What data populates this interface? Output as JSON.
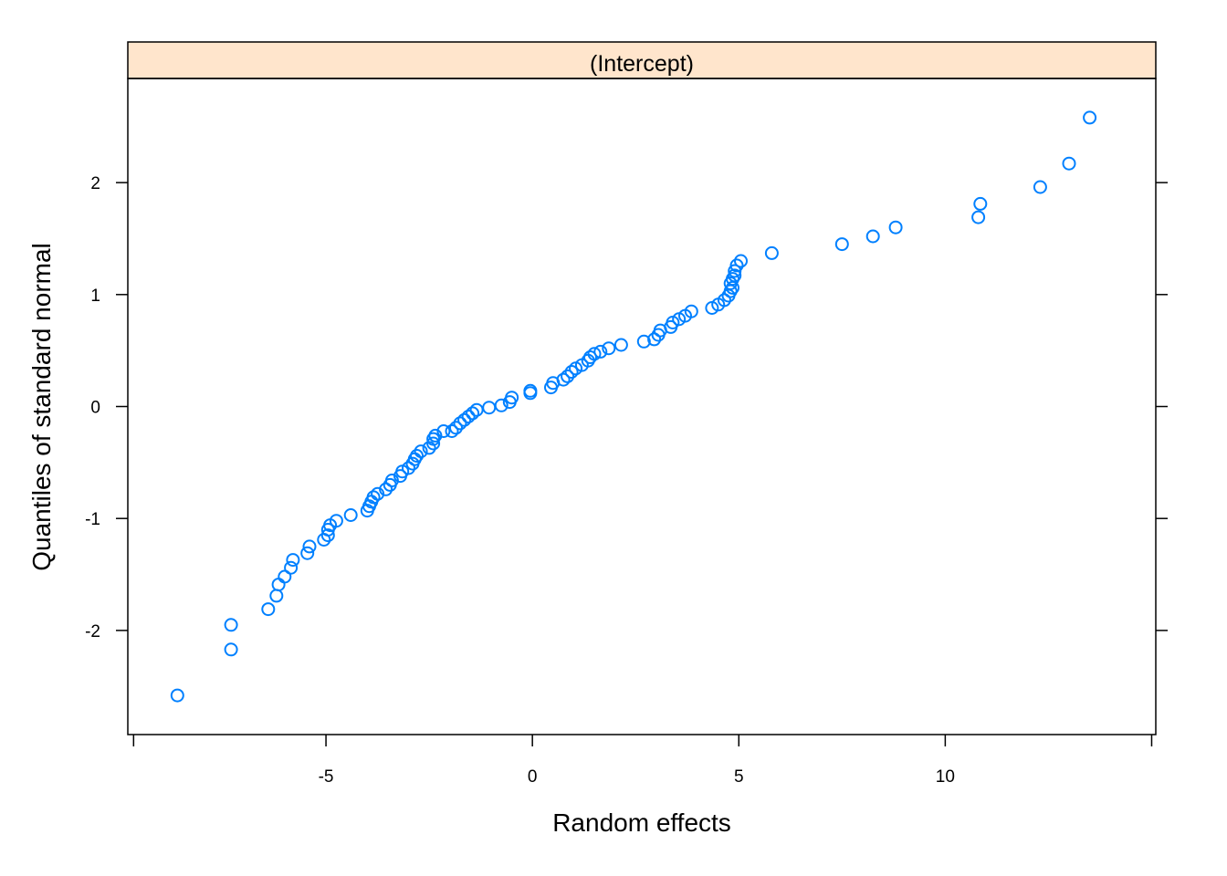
{
  "chart_data": {
    "type": "scatter",
    "panel_label": "(Intercept)",
    "xlabel": "Random effects",
    "ylabel": "Quantiles of standard normal",
    "xlim": [
      -9.8,
      15.1
    ],
    "ylim": [
      -2.93,
      2.93
    ],
    "x_ticks": [
      -5,
      0,
      5,
      10
    ],
    "y_ticks": [
      -2,
      -1,
      0,
      1,
      2
    ],
    "x_tick_labels": [
      "-5",
      "0",
      "5",
      "10"
    ],
    "y_tick_labels": [
      "-2",
      "-1",
      "0",
      "1",
      "2"
    ],
    "grid": false,
    "colors": {
      "points": "#0080ff",
      "strip": "#ffe5cc",
      "frame": "#000000"
    },
    "points": [
      [
        -8.6,
        -2.58
      ],
      [
        -7.3,
        -2.17
      ],
      [
        -7.3,
        -1.95
      ],
      [
        -6.4,
        -1.81
      ],
      [
        -6.2,
        -1.69
      ],
      [
        -6.15,
        -1.59
      ],
      [
        -6.0,
        -1.52
      ],
      [
        -5.85,
        -1.44
      ],
      [
        -5.8,
        -1.37
      ],
      [
        -5.45,
        -1.31
      ],
      [
        -5.4,
        -1.25
      ],
      [
        -5.05,
        -1.19
      ],
      [
        -4.95,
        -1.15
      ],
      [
        -4.95,
        -1.1
      ],
      [
        -4.9,
        -1.06
      ],
      [
        -4.75,
        -1.02
      ],
      [
        -4.4,
        -0.97
      ],
      [
        -4.0,
        -0.93
      ],
      [
        -3.95,
        -0.89
      ],
      [
        -3.9,
        -0.85
      ],
      [
        -3.85,
        -0.81
      ],
      [
        -3.75,
        -0.78
      ],
      [
        -3.55,
        -0.74
      ],
      [
        -3.45,
        -0.7
      ],
      [
        -3.4,
        -0.66
      ],
      [
        -3.2,
        -0.62
      ],
      [
        -3.15,
        -0.58
      ],
      [
        -3.0,
        -0.55
      ],
      [
        -2.9,
        -0.51
      ],
      [
        -2.85,
        -0.47
      ],
      [
        -2.8,
        -0.44
      ],
      [
        -2.7,
        -0.4
      ],
      [
        -2.5,
        -0.37
      ],
      [
        -2.4,
        -0.33
      ],
      [
        -2.4,
        -0.29
      ],
      [
        -2.35,
        -0.26
      ],
      [
        -2.15,
        -0.22
      ],
      [
        -1.95,
        -0.22
      ],
      [
        -1.85,
        -0.19
      ],
      [
        -1.75,
        -0.15
      ],
      [
        -1.65,
        -0.12
      ],
      [
        -1.55,
        -0.09
      ],
      [
        -1.45,
        -0.06
      ],
      [
        -1.35,
        -0.03
      ],
      [
        -1.05,
        -0.01
      ],
      [
        -0.75,
        0.01
      ],
      [
        -0.55,
        0.04
      ],
      [
        -0.5,
        0.08
      ],
      [
        -0.05,
        0.12
      ],
      [
        -0.05,
        0.14
      ],
      [
        0.45,
        0.17
      ],
      [
        0.5,
        0.21
      ],
      [
        0.75,
        0.24
      ],
      [
        0.85,
        0.27
      ],
      [
        0.95,
        0.31
      ],
      [
        1.05,
        0.34
      ],
      [
        1.2,
        0.37
      ],
      [
        1.35,
        0.41
      ],
      [
        1.4,
        0.44
      ],
      [
        1.5,
        0.47
      ],
      [
        1.65,
        0.49
      ],
      [
        1.85,
        0.52
      ],
      [
        2.15,
        0.55
      ],
      [
        2.7,
        0.58
      ],
      [
        2.95,
        0.6
      ],
      [
        3.05,
        0.64
      ],
      [
        3.1,
        0.68
      ],
      [
        3.35,
        0.71
      ],
      [
        3.4,
        0.75
      ],
      [
        3.55,
        0.78
      ],
      [
        3.7,
        0.81
      ],
      [
        3.85,
        0.85
      ],
      [
        4.35,
        0.88
      ],
      [
        4.5,
        0.91
      ],
      [
        4.65,
        0.95
      ],
      [
        4.75,
        0.99
      ],
      [
        4.8,
        1.03
      ],
      [
        4.85,
        1.06
      ],
      [
        4.8,
        1.1
      ],
      [
        4.85,
        1.14
      ],
      [
        4.9,
        1.17
      ],
      [
        4.9,
        1.21
      ],
      [
        4.95,
        1.26
      ],
      [
        5.05,
        1.3
      ],
      [
        5.8,
        1.37
      ],
      [
        7.5,
        1.45
      ],
      [
        8.25,
        1.52
      ],
      [
        8.8,
        1.6
      ],
      [
        10.8,
        1.69
      ],
      [
        10.85,
        1.81
      ],
      [
        12.3,
        1.96
      ],
      [
        13.0,
        2.17
      ],
      [
        13.5,
        2.58
      ]
    ]
  }
}
